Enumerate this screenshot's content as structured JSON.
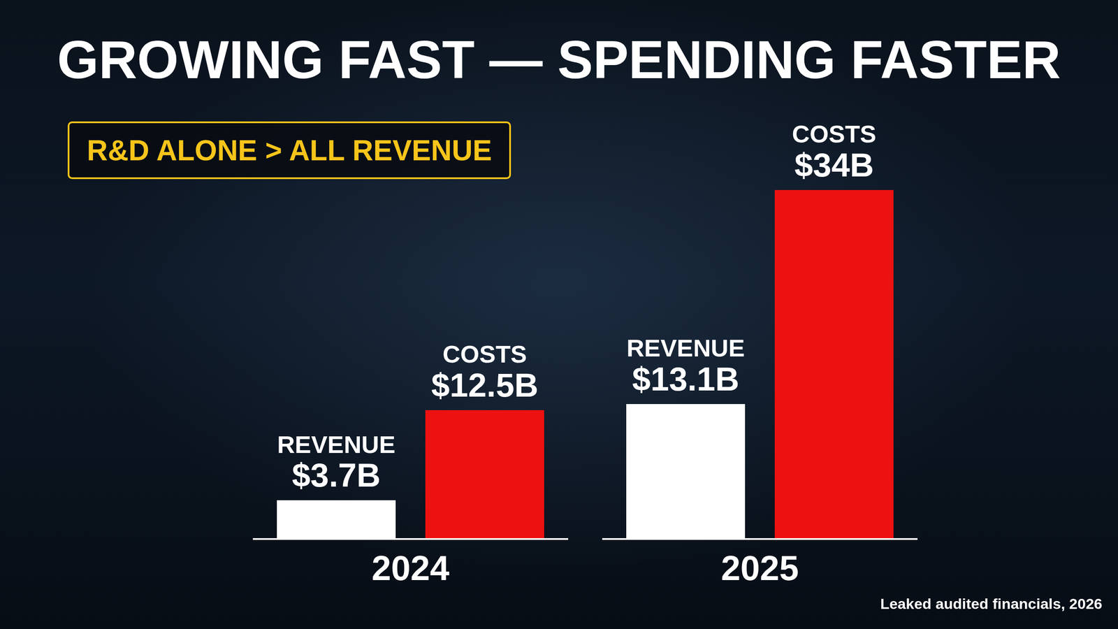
{
  "chart_data": {
    "type": "bar",
    "title": "GROWING FAST — SPENDING FASTER",
    "annotation": "R&D ALONE > ALL REVENUE",
    "source": "Leaked audited financials, 2026",
    "categories": [
      "2024",
      "2025"
    ],
    "series": [
      {
        "name": "REVENUE",
        "color": "#ffffff",
        "values": [
          3.7,
          13.1
        ],
        "value_labels": [
          "$3.7B",
          "$13.1B"
        ]
      },
      {
        "name": "COSTS",
        "color": "#ee1111",
        "values": [
          12.5,
          34
        ],
        "value_labels": [
          "$12.5B",
          "$34B"
        ]
      }
    ],
    "ylim": [
      0,
      34
    ],
    "grid": false,
    "data_labels": true,
    "tick_labels": "x"
  }
}
